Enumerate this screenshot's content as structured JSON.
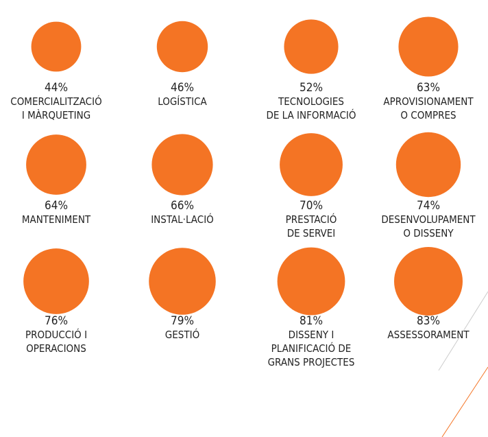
{
  "chart_data": {
    "type": "circles",
    "color": "#f47424",
    "categories": [
      "COMERCIALITZACIÓ\nI MÀRQUETING",
      "LOGÍSTICA",
      "TECNOLOGIES\nDE LA INFORMACIÓ",
      "APROVISIONAMENT\nO COMPRES",
      "MANTENIMENT",
      "INSTAL·LACIÓ",
      "PRESTACIÓ\nDE SERVEI",
      "DESENVOLUPAMENT\nO DISSENY",
      "PRODUCCIÓ I\nOPERACIONS",
      "GESTIÓ",
      "DISSENY I\nPLANIFICACIÓ DE\nGRANS PROJECTES",
      "ASSESSORAMENT"
    ],
    "values": [
      44,
      46,
      52,
      63,
      64,
      66,
      70,
      74,
      76,
      79,
      81,
      83
    ],
    "value_labels": [
      "44%",
      "46%",
      "52%",
      "63%",
      "64%",
      "66%",
      "70%",
      "74%",
      "76%",
      "79%",
      "81%",
      "83%"
    ]
  }
}
